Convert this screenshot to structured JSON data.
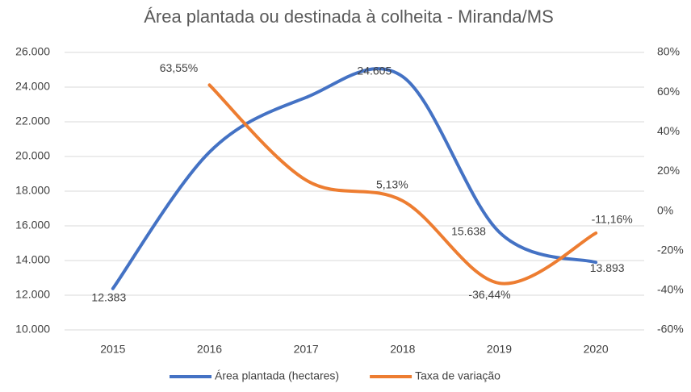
{
  "chart_data": {
    "type": "line",
    "title": "Área plantada ou destinada à colheita -  Miranda/MS",
    "categories": [
      "2015",
      "2016",
      "2017",
      "2018",
      "2019",
      "2020"
    ],
    "series": [
      {
        "name": "Área plantada (hectares)",
        "color": "#4472c4",
        "values": [
          12383,
          20252,
          23404,
          24605,
          15638,
          13893
        ],
        "value_labels": [
          "12.383",
          null,
          null,
          "24.605",
          "15.638",
          "13.893"
        ]
      },
      {
        "name": "Taxa de variação",
        "color": "#ed7d31",
        "axis": "y2",
        "values": [
          null,
          63.55,
          15.56,
          5.13,
          -36.44,
          -11.16
        ],
        "value_labels": [
          null,
          "63,55%",
          null,
          "5,13%",
          "-36,44%",
          "-11,16%"
        ]
      }
    ],
    "ylim": [
      10000,
      26000
    ],
    "yticks": [
      {
        "value": 10000,
        "label": "10.000"
      },
      {
        "value": 12000,
        "label": "12.000"
      },
      {
        "value": 14000,
        "label": "14.000"
      },
      {
        "value": 16000,
        "label": "16.000"
      },
      {
        "value": 18000,
        "label": "18.000"
      },
      {
        "value": 20000,
        "label": "20.000"
      },
      {
        "value": 22000,
        "label": "22.000"
      },
      {
        "value": 24000,
        "label": "24.000"
      },
      {
        "value": 26000,
        "label": "26.000"
      }
    ],
    "y2lim": [
      -60,
      80
    ],
    "y2ticks": [
      {
        "value": -60,
        "label": "-60%"
      },
      {
        "value": -40,
        "label": "-40%"
      },
      {
        "value": -20,
        "label": "-20%"
      },
      {
        "value": 0,
        "label": "0%"
      },
      {
        "value": 20,
        "label": "20%"
      },
      {
        "value": 40,
        "label": "40%"
      },
      {
        "value": 60,
        "label": "60%"
      },
      {
        "value": 80,
        "label": "80%"
      }
    ],
    "grid": true,
    "smooth": true,
    "legend": "bottom"
  }
}
